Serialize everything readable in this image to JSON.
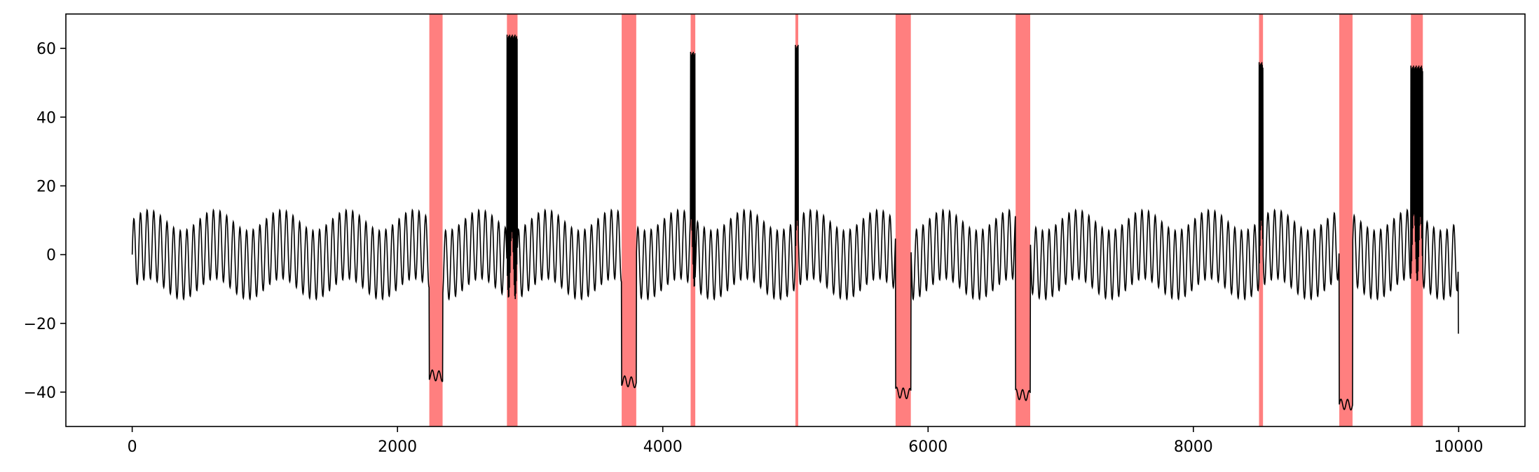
{
  "chart_data": {
    "type": "line",
    "title": "",
    "xlabel": "",
    "ylabel": "",
    "xlim": [
      -500,
      10500
    ],
    "ylim": [
      -50,
      70
    ],
    "x_ticks": [
      0,
      2000,
      4000,
      6000,
      8000,
      10000
    ],
    "x_tick_labels": [
      "0",
      "2000",
      "4000",
      "6000",
      "8000",
      "10000"
    ],
    "y_ticks": [
      -40,
      -20,
      0,
      20,
      40,
      60
    ],
    "y_tick_labels": [
      "−40",
      "−20",
      "0",
      "20",
      "40",
      "60"
    ],
    "grid": false,
    "legend": "none",
    "line_color": "#000000",
    "highlight_color": "#ff0000",
    "highlight_opacity": 0.5,
    "signal": {
      "x_range": [
        0,
        9999
      ],
      "baseline_fast_period": 50,
      "baseline_fast_amplitude": 10,
      "baseline_slow_period": 500,
      "baseline_slow_amplitude": 3,
      "end_value": -23
    },
    "anomalies": [
      {
        "start": 2240,
        "end": 2340,
        "kind": "level",
        "value": -35
      },
      {
        "start": 2825,
        "end": 2905,
        "kind": "spike_burst",
        "value": 64
      },
      {
        "start": 3690,
        "end": 3800,
        "kind": "level",
        "value": -37
      },
      {
        "start": 4210,
        "end": 4245,
        "kind": "spike_burst",
        "value": 59
      },
      {
        "start": 5000,
        "end": 5020,
        "kind": "spike_burst",
        "value": 61
      },
      {
        "start": 5755,
        "end": 5870,
        "kind": "level",
        "value": -40
      },
      {
        "start": 6660,
        "end": 6770,
        "kind": "level",
        "value": -41
      },
      {
        "start": 8495,
        "end": 8525,
        "kind": "spike_burst",
        "value": 56
      },
      {
        "start": 9100,
        "end": 9200,
        "kind": "level",
        "value": -44
      },
      {
        "start": 9640,
        "end": 9730,
        "kind": "spike_burst",
        "value": 55
      }
    ]
  }
}
